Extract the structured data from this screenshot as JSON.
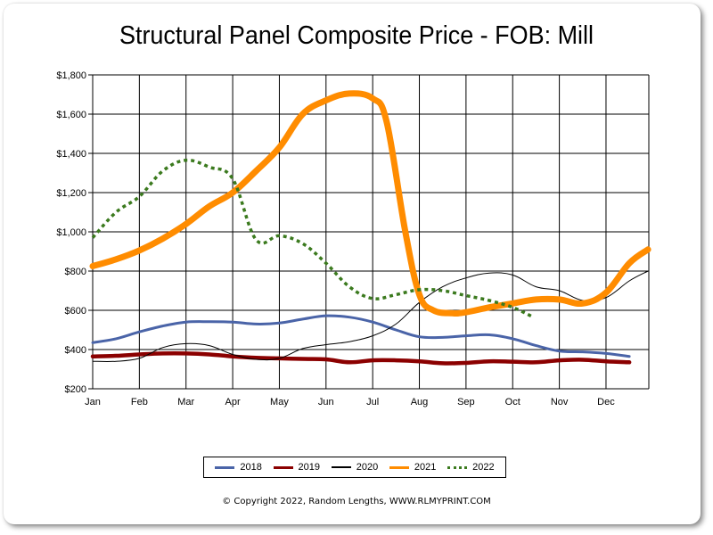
{
  "chart_data": {
    "type": "line",
    "title": "Structural Panel Composite Price - FOB: Mill",
    "xlabel": "",
    "ylabel": "",
    "x_unit": "month index (0 = Jan, 11 = Dec), half-month samples",
    "categories": [
      "Jan",
      "Feb",
      "Mar",
      "Apr",
      "May",
      "Jun",
      "Jul",
      "Aug",
      "Sep",
      "Oct",
      "Nov",
      "Dec"
    ],
    "ylim": [
      200,
      1800
    ],
    "xlim": [
      0,
      11.9
    ],
    "yticks": [
      200,
      400,
      600,
      800,
      1000,
      1200,
      1400,
      1600,
      1800
    ],
    "ytick_labels": [
      "$200",
      "$400",
      "$600",
      "$800",
      "$1,000",
      "$1,200",
      "$1,400",
      "$1,600",
      "$1,800"
    ],
    "grid": true,
    "legend_position": "bottom",
    "series": [
      {
        "name": "2018",
        "color": "#4a64a8",
        "style": "solid",
        "x": [
          0,
          0.5,
          1,
          1.5,
          2,
          2.5,
          3,
          3.5,
          4,
          4.5,
          5,
          5.5,
          6,
          6.5,
          7,
          7.5,
          8,
          8.5,
          9,
          9.5,
          10,
          10.5,
          11,
          11.5
        ],
        "values": [
          435,
          455,
          490,
          520,
          540,
          542,
          540,
          530,
          535,
          555,
          572,
          565,
          540,
          500,
          465,
          462,
          470,
          475,
          455,
          420,
          392,
          388,
          380,
          365
        ]
      },
      {
        "name": "2019",
        "color": "#8b0000",
        "style": "solid",
        "x": [
          0,
          0.5,
          1,
          1.5,
          2,
          2.5,
          3,
          3.5,
          4,
          4.5,
          5,
          5.5,
          6,
          6.5,
          7,
          7.5,
          8,
          8.5,
          9,
          9.5,
          10,
          10.5,
          11,
          11.5
        ],
        "values": [
          365,
          368,
          375,
          380,
          380,
          375,
          365,
          358,
          355,
          352,
          350,
          335,
          345,
          345,
          340,
          330,
          332,
          340,
          338,
          335,
          345,
          348,
          340,
          335
        ]
      },
      {
        "name": "2020",
        "color": "#000000",
        "style": "solid",
        "x": [
          0,
          0.5,
          1,
          1.5,
          2,
          2.5,
          3,
          3.5,
          4,
          4.5,
          5,
          5.5,
          6,
          6.5,
          7,
          7.5,
          8,
          8.5,
          9,
          9.5,
          10,
          10.5,
          11,
          11.5,
          11.9
        ],
        "values": [
          340,
          340,
          355,
          410,
          430,
          420,
          375,
          350,
          355,
          405,
          425,
          440,
          470,
          530,
          640,
          720,
          765,
          790,
          780,
          720,
          700,
          650,
          665,
          750,
          800
        ]
      },
      {
        "name": "2021",
        "color": "#ff8c00",
        "style": "solid",
        "x": [
          0,
          0.5,
          1,
          1.5,
          2,
          2.5,
          3,
          3.5,
          4,
          4.5,
          5,
          5.5,
          6,
          6.3,
          6.7,
          7,
          7.3,
          7.7,
          8,
          8.5,
          9,
          9.5,
          10,
          10.5,
          11,
          11.5,
          11.9
        ],
        "values": [
          825,
          860,
          905,
          965,
          1040,
          1130,
          1200,
          1310,
          1430,
          1600,
          1670,
          1705,
          1680,
          1560,
          1000,
          680,
          600,
          585,
          590,
          615,
          635,
          655,
          655,
          635,
          690,
          840,
          910
        ]
      },
      {
        "name": "2022",
        "color": "#3b7a1e",
        "style": "dotted",
        "x": [
          0,
          0.5,
          1,
          1.5,
          2,
          2.5,
          3,
          3.5,
          4,
          4.5,
          5,
          5.5,
          6,
          6.5,
          7,
          7.5,
          8,
          8.5,
          9,
          9.4
        ],
        "values": [
          970,
          1100,
          1180,
          1310,
          1365,
          1330,
          1270,
          960,
          980,
          940,
          840,
          720,
          660,
          680,
          705,
          700,
          675,
          650,
          615,
          570
        ]
      }
    ]
  },
  "legend": {
    "items": [
      {
        "label": "2018",
        "color": "#4a64a8",
        "style": "solid"
      },
      {
        "label": "2019",
        "color": "#8b0000",
        "style": "solid"
      },
      {
        "label": "2020",
        "color": "#000000",
        "style": "solid"
      },
      {
        "label": "2021",
        "color": "#ff8c00",
        "style": "solid"
      },
      {
        "label": "2022",
        "color": "#3b7a1e",
        "style": "dotted"
      }
    ]
  },
  "footer": {
    "copyright": "© Copyright 2022, Random Lengths, WWW.RLMYPRINT.COM"
  }
}
